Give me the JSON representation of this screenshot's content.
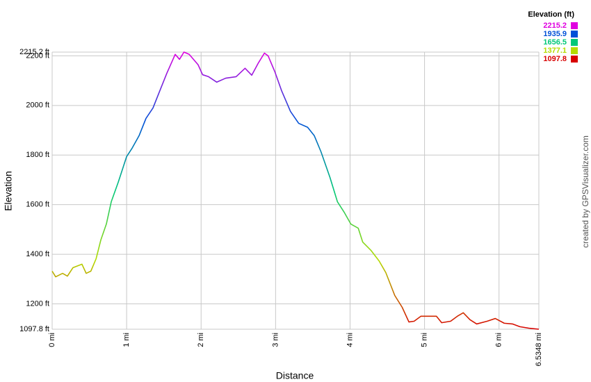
{
  "chart_data": {
    "type": "line",
    "x_label": "Distance",
    "y_label": "Elevation",
    "credit": "created by GPSVisualizer.com",
    "x": [
      0,
      0.047,
      0.14,
      0.205,
      0.28,
      0.4,
      0.457,
      0.52,
      0.59,
      0.654,
      0.728,
      0.794,
      0.887,
      1.0,
      1.074,
      1.167,
      1.26,
      1.354,
      1.428,
      1.54,
      1.652,
      1.71,
      1.77,
      1.84,
      1.96,
      2.02,
      2.1,
      2.21,
      2.33,
      2.47,
      2.59,
      2.68,
      2.77,
      2.85,
      2.9,
      2.99,
      3.08,
      3.2,
      3.31,
      3.43,
      3.52,
      3.61,
      3.73,
      3.83,
      3.92,
      4.01,
      4.11,
      4.17,
      4.28,
      4.39,
      4.48,
      4.6,
      4.7,
      4.79,
      4.86,
      4.95,
      5.04,
      5.16,
      5.23,
      5.35,
      5.44,
      5.52,
      5.61,
      5.7,
      5.84,
      5.95,
      6.07,
      6.18,
      6.28,
      6.4,
      6.5348
    ],
    "values": [
      1332,
      1309,
      1323,
      1312,
      1346,
      1360,
      1323,
      1332,
      1382,
      1458,
      1522,
      1612,
      1690,
      1794,
      1828,
      1878,
      1948,
      1990,
      2046,
      2130,
      2206,
      2186,
      2215.2,
      2206,
      2164,
      2124,
      2116,
      2094,
      2110,
      2116,
      2150,
      2122,
      2172,
      2211,
      2200,
      2136,
      2060,
      1976,
      1928,
      1912,
      1878,
      1813,
      1710,
      1612,
      1570,
      1522,
      1505,
      1449,
      1416,
      1373,
      1326,
      1234,
      1186,
      1127,
      1130,
      1150,
      1150,
      1150,
      1124,
      1130,
      1150,
      1164,
      1136,
      1119,
      1130,
      1141,
      1122,
      1119,
      1108,
      1102,
      1097.8
    ],
    "xlim": [
      0,
      6.5348
    ],
    "ylim": [
      1097.8,
      2215.2
    ],
    "xticks": [
      {
        "value": 0,
        "label": "0 mi"
      },
      {
        "value": 1,
        "label": "1 mi"
      },
      {
        "value": 2,
        "label": "2 mi"
      },
      {
        "value": 3,
        "label": "3 mi"
      },
      {
        "value": 4,
        "label": "4 mi"
      },
      {
        "value": 5,
        "label": "5 mi"
      },
      {
        "value": 6,
        "label": "6 mi"
      },
      {
        "value": 6.5348,
        "label": "6.5348 mi"
      }
    ],
    "yticks": [
      {
        "value": 1097.8,
        "label": "1097.8 ft"
      },
      {
        "value": 1200,
        "label": "1200 ft"
      },
      {
        "value": 1400,
        "label": "1400 ft"
      },
      {
        "value": 1600,
        "label": "1600 ft"
      },
      {
        "value": 1800,
        "label": "1800 ft"
      },
      {
        "value": 2000,
        "label": "2000 ft"
      },
      {
        "value": 2200,
        "label": "2200 ft"
      },
      {
        "value": 2215.2,
        "label": "2215.2 ft"
      }
    ],
    "grid": true,
    "legend": {
      "title": "Elevation (ft)",
      "items": [
        {
          "value": 2215.2,
          "color": "#e000e0"
        },
        {
          "value": 1935.9,
          "color": "#0050d8"
        },
        {
          "value": 1656.5,
          "color": "#00c878"
        },
        {
          "value": 1377.1,
          "color": "#b4dc00"
        },
        {
          "value": 1097.8,
          "color": "#d80000"
        }
      ]
    }
  }
}
